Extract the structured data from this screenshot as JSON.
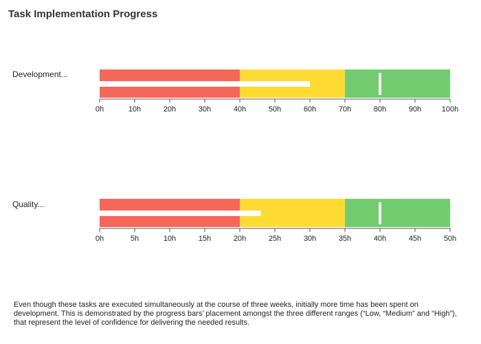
{
  "title": "Task Implementation Progress",
  "footnote": "Even though these tasks are executed simultaneously at the course of three weeks, initially more time has been spent on development. This is demonstrated by the progress bars’ placement amongst the three different ranges (“Low, “Medium” and “High”), that represent the level of confidence for delivering the needed results.",
  "colors": {
    "low": "#f6675a",
    "medium": "#fedb33",
    "high": "#72cc6e",
    "measure": "#ffffff",
    "target": "#ffffff",
    "axis": "#555555"
  },
  "chart_data": [
    {
      "type": "bullet",
      "category": "Development...",
      "ranges": [
        40,
        70,
        100
      ],
      "measure": 60,
      "target": 80,
      "xlim": [
        0,
        100
      ],
      "ticks": [
        0,
        10,
        20,
        30,
        40,
        50,
        60,
        70,
        80,
        90,
        100
      ],
      "tick_labels": [
        "0h",
        "10h",
        "20h",
        "30h",
        "40h",
        "50h",
        "60h",
        "70h",
        "80h",
        "90h",
        "100h"
      ]
    },
    {
      "type": "bullet",
      "category": "Quality...",
      "ranges": [
        20,
        35,
        50
      ],
      "measure": 23,
      "target": 40,
      "xlim": [
        0,
        50
      ],
      "ticks": [
        0,
        5,
        10,
        15,
        20,
        25,
        30,
        35,
        40,
        45,
        50
      ],
      "tick_labels": [
        "0h",
        "5h",
        "10h",
        "15h",
        "20h",
        "25h",
        "30h",
        "35h",
        "40h",
        "45h",
        "50h"
      ]
    }
  ]
}
